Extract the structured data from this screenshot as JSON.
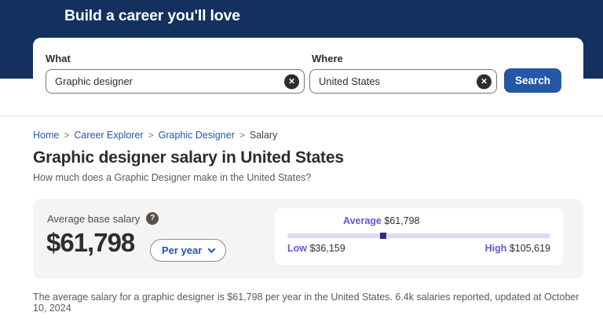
{
  "header": {
    "title": "Build a career you'll love"
  },
  "search": {
    "what_label": "What",
    "what_value": "Graphic designer",
    "where_label": "Where",
    "where_value": "United States",
    "search_button_label": "Search"
  },
  "icons": {
    "clear": "×",
    "help": "?"
  },
  "breadcrumb": {
    "separator": ">",
    "items": [
      {
        "label": "Home"
      },
      {
        "label": "Career Explorer"
      },
      {
        "label": "Graphic Designer"
      },
      {
        "label": "Salary"
      }
    ]
  },
  "page": {
    "title": "Graphic designer salary in United States",
    "subtitle": "How much does a Graphic Designer make in the United States?"
  },
  "salary_card": {
    "label": "Average base salary",
    "amount": "$61,798",
    "period_selected": "Per year"
  },
  "salary_range": {
    "average_label": "Average",
    "average_value": "$61,798",
    "low_label": "Low",
    "low_value": "$36,159",
    "high_label": "High",
    "high_value": "$105,619",
    "marker_percent": 36.5
  },
  "footer": {
    "text": "The average salary for a graphic designer is $61,798 per year in the United States.  6.4k salaries reported, updated at October 10, 2024"
  },
  "colors": {
    "header_navy": "#13305f",
    "primary_blue": "#2557a7",
    "accent_purple": "#6258cf",
    "track_lavender": "#ded9f6",
    "marker_indigo": "#2f2b80",
    "card_gray": "#f5f4f2"
  }
}
